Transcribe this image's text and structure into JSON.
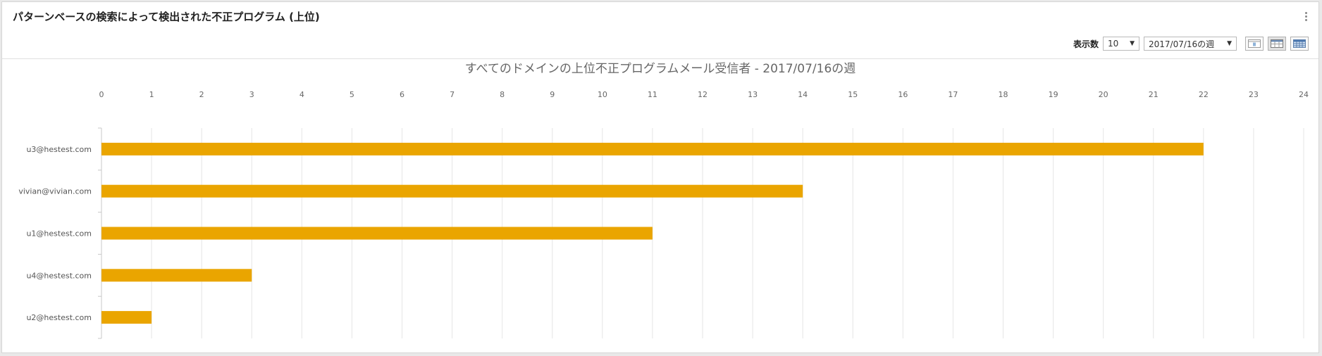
{
  "widget": {
    "title": "パターンベースの検索によって検出された不正プログラム (上位)"
  },
  "toolbar": {
    "count_label": "表示数",
    "count_value": "10",
    "week_value": "2017/07/16の週"
  },
  "icons": {
    "menu": "kebab-menu-icon",
    "view_day": "calendar-day-icon",
    "view_week": "calendar-week-icon",
    "view_month": "calendar-month-icon"
  },
  "colors": {
    "bar": "#eaa500",
    "grid": "#e6e6e6",
    "axis": "#c8c8c8"
  },
  "chart_data": {
    "type": "bar",
    "orientation": "horizontal",
    "title": "すべてのドメインの上位不正プログラムメール受信者 - 2017/07/16の週",
    "categories": [
      "u3@hestest.com",
      "vivian@vivian.com",
      "u1@hestest.com",
      "u4@hestest.com",
      "u2@hestest.com"
    ],
    "values": [
      22,
      14,
      11,
      3,
      1
    ],
    "xlim": [
      0,
      24
    ],
    "x_ticks": [
      0,
      1,
      2,
      3,
      4,
      5,
      6,
      7,
      8,
      9,
      10,
      11,
      12,
      13,
      14,
      15,
      16,
      17,
      18,
      19,
      20,
      21,
      22,
      23,
      24
    ],
    "x_axis_position": "top",
    "grid": true,
    "xlabel": "",
    "ylabel": ""
  }
}
